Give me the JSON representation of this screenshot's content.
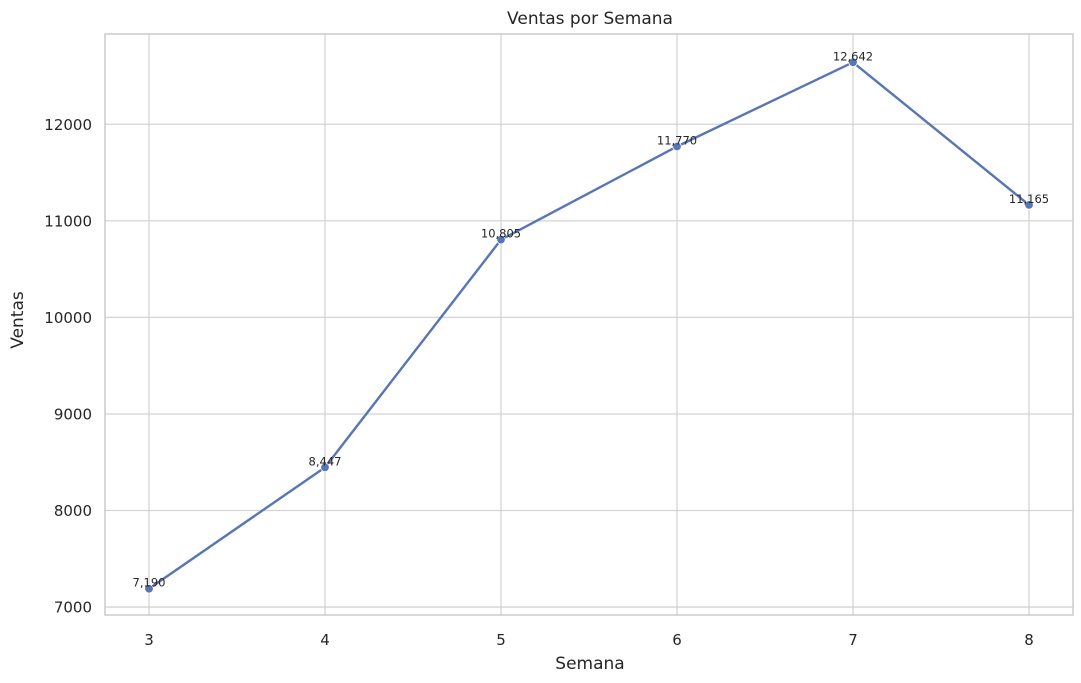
{
  "chart_data": {
    "type": "line",
    "title": "Ventas por Semana",
    "xlabel": "Semana",
    "ylabel": "Ventas",
    "x": [
      3,
      4,
      5,
      6,
      7,
      8
    ],
    "series": [
      {
        "values": [
          7190,
          8447,
          10805,
          11770,
          12642,
          11165
        ],
        "labels": [
          "7,190",
          "8,447",
          "10,805",
          "11,770",
          "12,642",
          "11,165"
        ],
        "color": "#5875b5"
      }
    ],
    "xlim": [
      2.75,
      8.25
    ],
    "ylim": [
      6918,
      12935
    ],
    "xticks": [
      3,
      4,
      5,
      6,
      7,
      8
    ],
    "yticks": [
      7000,
      8000,
      9000,
      10000,
      11000,
      12000
    ],
    "ytick_labels": [
      "7000",
      "8000",
      "9000",
      "10000",
      "11000",
      "12000"
    ],
    "grid": true,
    "marker": "circle"
  }
}
